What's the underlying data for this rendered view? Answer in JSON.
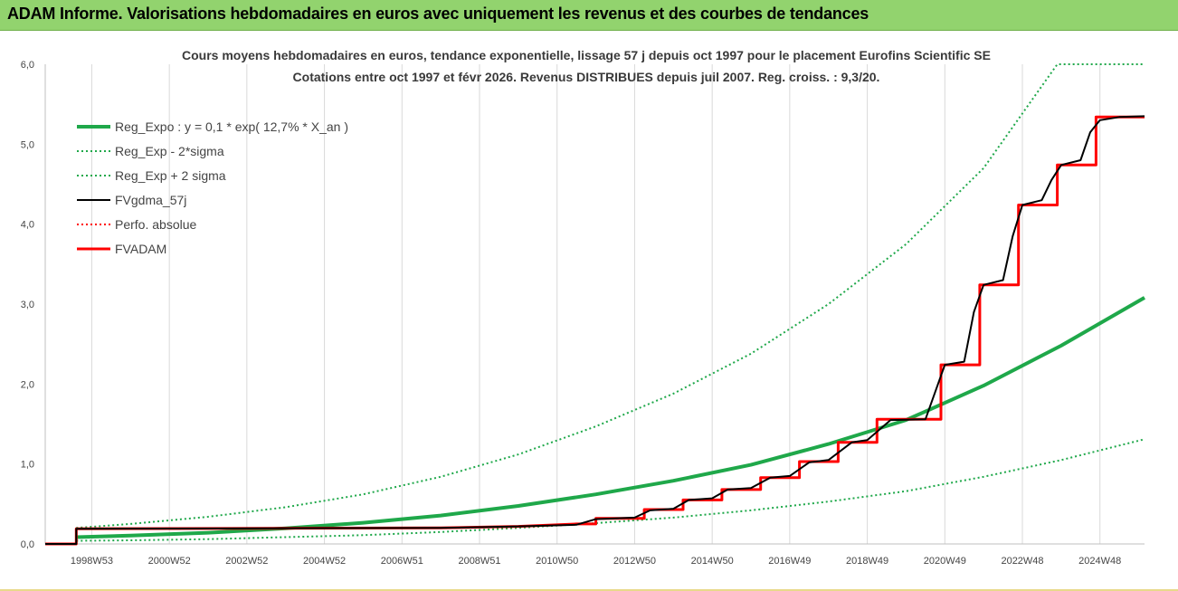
{
  "window": {
    "title": "ADAM Informe. Valorisations hebdomadaires en euros avec uniquement les revenus et des courbes de tendances"
  },
  "colors": {
    "title_bar": "#92d36e",
    "trend": "#1fa84a",
    "price": "#000000",
    "adam": "#ff0000",
    "grid": "#d9d9d9"
  },
  "chart_data": {
    "type": "line",
    "title": [
      "Cours moyens hebdomadaires en euros, tendance exponentielle, lissage 57 j depuis oct 1997 pour le placement Eurofins Scientific SE",
      "Cotations entre oct 1997 et févr 2026. Revenus DISTRIBUES depuis juil 2007. Reg. croiss. : 9,3/20."
    ],
    "xlabel": "",
    "ylabel": "",
    "xlim": [
      1997.8,
      2026.15
    ],
    "ylim": [
      0,
      6
    ],
    "y_ticks": [
      "0,0",
      "1,0",
      "2,0",
      "3,0",
      "4,0",
      "5,0",
      "6,0"
    ],
    "x_tick_labels": [
      "1998W53",
      "2000W52",
      "2002W52",
      "2004W52",
      "2006W51",
      "2008W51",
      "2010W50",
      "2012W50",
      "2014W50",
      "2016W49",
      "2018W49",
      "2020W49",
      "2022W48",
      "2024W48"
    ],
    "x_tick_positions": [
      1999.0,
      2001.0,
      2003.0,
      2005.0,
      2007.0,
      2009.0,
      2011.0,
      2013.0,
      2015.0,
      2017.0,
      2019.0,
      2021.0,
      2023.0,
      2025.0
    ],
    "grid": "vertical",
    "legend_placement": "top-left",
    "series": [
      {
        "name": "Reg_Expo : y = 0,1 * exp( 12,7% *  X_an )",
        "style": "solid-thick",
        "color": "#1fa84a",
        "points": [
          [
            1998.6,
            0.085
          ],
          [
            2000,
            0.105
          ],
          [
            2002,
            0.14
          ],
          [
            2004,
            0.195
          ],
          [
            2006,
            0.265
          ],
          [
            2008,
            0.355
          ],
          [
            2010,
            0.475
          ],
          [
            2012,
            0.62
          ],
          [
            2014,
            0.79
          ],
          [
            2016,
            0.99
          ],
          [
            2018,
            1.25
          ],
          [
            2020,
            1.55
          ],
          [
            2022,
            1.98
          ],
          [
            2024,
            2.48
          ],
          [
            2026.15,
            3.08
          ]
        ]
      },
      {
        "name": "Reg_Exp - 2*sigma",
        "style": "dotted",
        "color": "#1fa84a",
        "points": [
          [
            1998.6,
            0.04
          ],
          [
            2000,
            0.045
          ],
          [
            2002,
            0.06
          ],
          [
            2004,
            0.085
          ],
          [
            2006,
            0.11
          ],
          [
            2008,
            0.15
          ],
          [
            2010,
            0.2
          ],
          [
            2012,
            0.26
          ],
          [
            2014,
            0.33
          ],
          [
            2016,
            0.42
          ],
          [
            2018,
            0.53
          ],
          [
            2020,
            0.66
          ],
          [
            2022,
            0.84
          ],
          [
            2024,
            1.05
          ],
          [
            2026.15,
            1.31
          ]
        ]
      },
      {
        "name": "Reg_Exp + 2 sigma",
        "style": "dotted",
        "color": "#1fa84a",
        "points": [
          [
            1998.6,
            0.2
          ],
          [
            2000,
            0.25
          ],
          [
            2002,
            0.34
          ],
          [
            2004,
            0.46
          ],
          [
            2006,
            0.62
          ],
          [
            2008,
            0.84
          ],
          [
            2010,
            1.12
          ],
          [
            2012,
            1.47
          ],
          [
            2014,
            1.88
          ],
          [
            2016,
            2.38
          ],
          [
            2018,
            3.0
          ],
          [
            2020,
            3.75
          ],
          [
            2022,
            4.7
          ],
          [
            2023.9,
            6.0
          ],
          [
            2026.15,
            6.0
          ]
        ]
      },
      {
        "name": "FVgdma_57j",
        "style": "solid",
        "color": "#000000",
        "points": [
          [
            1997.8,
            0.0
          ],
          [
            1998.6,
            0.0
          ],
          [
            1998.6,
            0.19
          ],
          [
            2008.0,
            0.2
          ],
          [
            2010.0,
            0.22
          ],
          [
            2011.5,
            0.24
          ],
          [
            2012.0,
            0.31
          ],
          [
            2013.0,
            0.33
          ],
          [
            2013.4,
            0.42
          ],
          [
            2014.0,
            0.44
          ],
          [
            2014.4,
            0.55
          ],
          [
            2015.0,
            0.57
          ],
          [
            2015.4,
            0.68
          ],
          [
            2016.0,
            0.7
          ],
          [
            2016.5,
            0.83
          ],
          [
            2017.0,
            0.85
          ],
          [
            2017.5,
            1.02
          ],
          [
            2018.0,
            1.05
          ],
          [
            2018.6,
            1.27
          ],
          [
            2019.0,
            1.3
          ],
          [
            2019.6,
            1.55
          ],
          [
            2020.5,
            1.56
          ],
          [
            2020.75,
            1.9
          ],
          [
            2021.0,
            2.24
          ],
          [
            2021.5,
            2.28
          ],
          [
            2021.75,
            2.9
          ],
          [
            2022.0,
            3.24
          ],
          [
            2022.5,
            3.3
          ],
          [
            2022.75,
            3.85
          ],
          [
            2023.0,
            4.24
          ],
          [
            2023.5,
            4.3
          ],
          [
            2023.75,
            4.55
          ],
          [
            2024.0,
            4.74
          ],
          [
            2024.5,
            4.8
          ],
          [
            2024.75,
            5.15
          ],
          [
            2025.0,
            5.3
          ],
          [
            2025.5,
            5.34
          ],
          [
            2026.15,
            5.35
          ]
        ]
      },
      {
        "name": "Perfo. absolue",
        "style": "dotted",
        "color": "#ff0000",
        "points": []
      },
      {
        "name": "FVADAM",
        "style": "step-thick",
        "color": "#ff0000",
        "points": [
          [
            1997.8,
            0.0
          ],
          [
            1998.6,
            0.0
          ],
          [
            1998.6,
            0.19
          ],
          [
            2008.0,
            0.2
          ],
          [
            2010.0,
            0.22
          ],
          [
            2011.5,
            0.25
          ],
          [
            2012.0,
            0.25
          ],
          [
            2012.0,
            0.32
          ],
          [
            2013.25,
            0.32
          ],
          [
            2013.25,
            0.43
          ],
          [
            2014.25,
            0.43
          ],
          [
            2014.25,
            0.55
          ],
          [
            2015.25,
            0.55
          ],
          [
            2015.25,
            0.68
          ],
          [
            2016.25,
            0.68
          ],
          [
            2016.25,
            0.83
          ],
          [
            2017.25,
            0.83
          ],
          [
            2017.25,
            1.03
          ],
          [
            2018.25,
            1.03
          ],
          [
            2018.25,
            1.27
          ],
          [
            2019.25,
            1.27
          ],
          [
            2019.25,
            1.56
          ],
          [
            2020.9,
            1.56
          ],
          [
            2020.9,
            2.24
          ],
          [
            2021.9,
            2.24
          ],
          [
            2021.9,
            3.24
          ],
          [
            2022.9,
            3.24
          ],
          [
            2022.9,
            4.24
          ],
          [
            2023.9,
            4.24
          ],
          [
            2023.9,
            4.74
          ],
          [
            2024.9,
            4.74
          ],
          [
            2024.9,
            5.34
          ],
          [
            2026.15,
            5.34
          ]
        ]
      }
    ]
  }
}
